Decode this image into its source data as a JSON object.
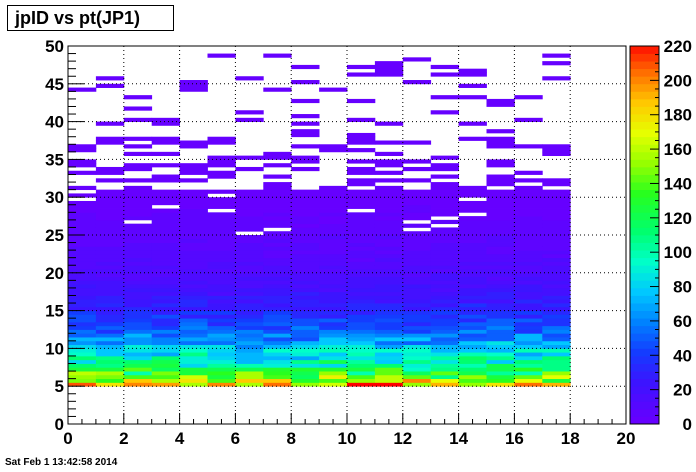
{
  "title": "jpID vs pt(JP1)",
  "date_stamp": "Sat Feb  1 13:42:58 2014",
  "chart_data": {
    "type": "heatmap",
    "title": "jpID vs pt(JP1)",
    "xlabel": "",
    "ylabel": "",
    "xlim": [
      0,
      20
    ],
    "ylim": [
      0,
      50
    ],
    "x_ticks": [
      0,
      2,
      4,
      6,
      8,
      10,
      12,
      14,
      16,
      18,
      20
    ],
    "y_ticks": [
      0,
      5,
      10,
      15,
      20,
      25,
      30,
      35,
      40,
      45,
      50
    ],
    "grid": true,
    "colorbar": {
      "min": 0,
      "max": 220,
      "ticks": [
        0,
        20,
        40,
        60,
        80,
        100,
        120,
        140,
        160,
        180,
        200,
        220
      ]
    },
    "x_bins": 18,
    "x_bin_width": 1,
    "y_bin_width": 0.5,
    "filled_range_x": [
      0,
      18
    ],
    "filled_range_y": [
      5,
      49
    ],
    "description_of_intensity": "counts peak near y=5-6 (up to ~220) and fall off with y; sparse bins above y~32",
    "profile_by_y": [
      {
        "y": 5,
        "count": 210
      },
      {
        "y": 6,
        "count": 150
      },
      {
        "y": 7,
        "count": 120
      },
      {
        "y": 8,
        "count": 100
      },
      {
        "y": 9,
        "count": 90
      },
      {
        "y": 10,
        "count": 75
      },
      {
        "y": 11,
        "count": 65
      },
      {
        "y": 12,
        "count": 55
      },
      {
        "y": 13,
        "count": 45
      },
      {
        "y": 14,
        "count": 40
      },
      {
        "y": 15,
        "count": 32
      },
      {
        "y": 16,
        "count": 28
      },
      {
        "y": 17,
        "count": 24
      },
      {
        "y": 18,
        "count": 20
      },
      {
        "y": 19,
        "count": 17
      },
      {
        "y": 20,
        "count": 14
      },
      {
        "y": 22,
        "count": 11
      },
      {
        "y": 24,
        "count": 8
      },
      {
        "y": 26,
        "count": 6
      },
      {
        "y": 28,
        "count": 4
      },
      {
        "y": 30,
        "count": 3
      },
      {
        "y": 32,
        "count": 2
      },
      {
        "y": 35,
        "count": 1
      },
      {
        "y": 40,
        "count": 1
      },
      {
        "y": 45,
        "count": 1
      },
      {
        "y": 49,
        "count": 1
      }
    ]
  }
}
